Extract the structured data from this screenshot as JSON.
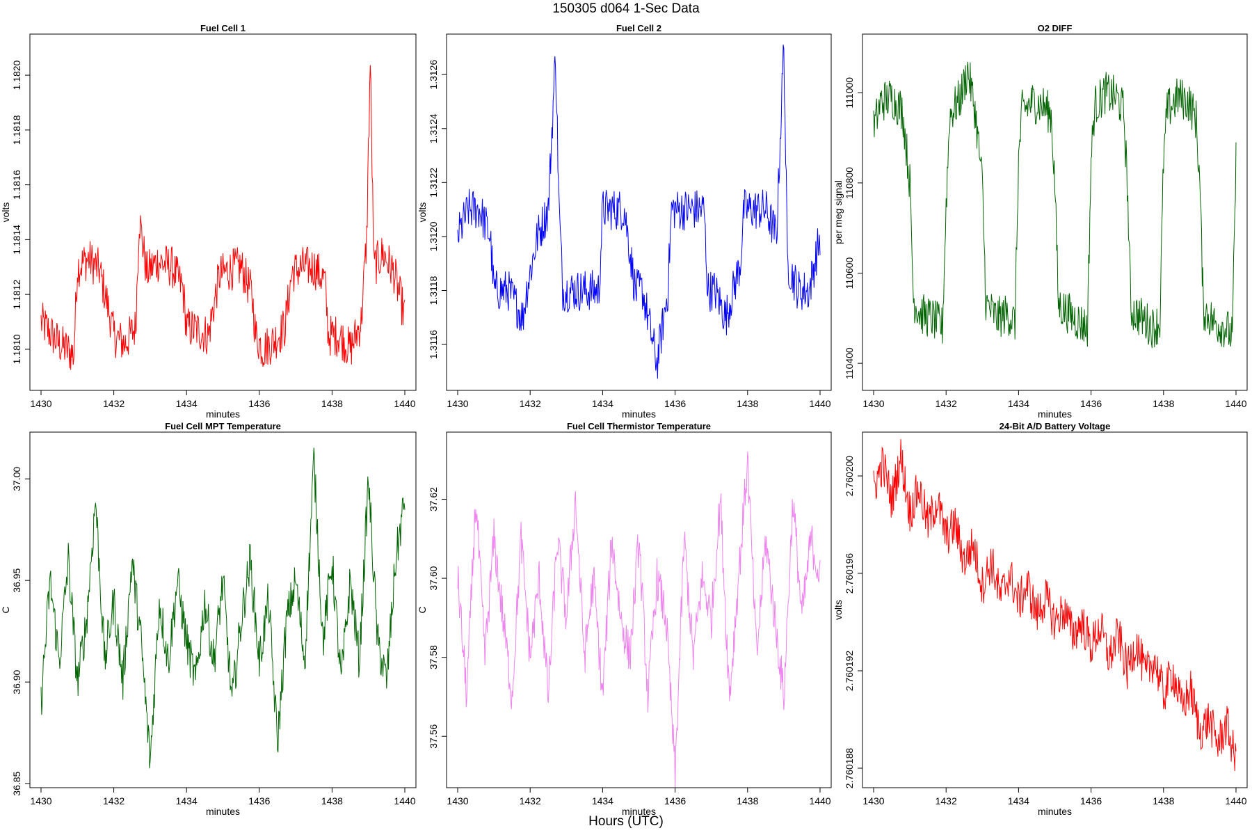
{
  "page": {
    "title": "150305   d064   1-Sec Data",
    "x_super_label": "Hours (UTC)"
  },
  "chart_data": [
    {
      "type": "line",
      "title": "Fuel Cell 1",
      "xlabel": "minutes",
      "ylabel": "volts",
      "color": "#ff0000",
      "xlim": [
        1430,
        1440
      ],
      "ylim": [
        1.18085,
        1.18215
      ],
      "xticks": [
        1430,
        1432,
        1434,
        1436,
        1438,
        1440
      ],
      "yticks": [
        1.181,
        1.1812,
        1.1814,
        1.1816,
        1.1818,
        1.182
      ],
      "ytick_labels": [
        "1.1810",
        "1.1812",
        "1.1814",
        "1.1816",
        "1.1818",
        "1.1820"
      ],
      "series": [
        {
          "name": "Fuel Cell 1",
          "x": [
            1430,
            1430.5,
            1430.9,
            1431,
            1431.3,
            1431.6,
            1431.9,
            1432,
            1432.3,
            1432.6,
            1432.7,
            1432.9,
            1433.2,
            1433.6,
            1433.9,
            1434,
            1434.3,
            1434.6,
            1434.9,
            1435.2,
            1435.5,
            1435.8,
            1435.9,
            1436.1,
            1436.4,
            1436.7,
            1436.9,
            1437.2,
            1437.5,
            1437.8,
            1437.9,
            1438.2,
            1438.5,
            1438.8,
            1438.95,
            1439.05,
            1439.15,
            1439.4,
            1439.7,
            1440
          ],
          "y": [
            1.1811,
            1.18102,
            1.18098,
            1.1813,
            1.18133,
            1.18129,
            1.18112,
            1.18105,
            1.18102,
            1.18108,
            1.18148,
            1.18128,
            1.18132,
            1.1813,
            1.18122,
            1.18108,
            1.18107,
            1.18105,
            1.18127,
            1.18129,
            1.1813,
            1.1812,
            1.18105,
            1.181,
            1.18103,
            1.18108,
            1.18128,
            1.1813,
            1.1813,
            1.18125,
            1.18105,
            1.18105,
            1.181,
            1.1811,
            1.1814,
            1.18205,
            1.1813,
            1.18135,
            1.18128,
            1.18112
          ]
        }
      ]
    },
    {
      "type": "line",
      "title": "Fuel Cell 2",
      "xlabel": "minutes",
      "ylabel": "volts",
      "color": "#0000ff",
      "xlim": [
        1430,
        1440
      ],
      "ylim": [
        1.31143,
        1.31275
      ],
      "xticks": [
        1430,
        1432,
        1434,
        1436,
        1438,
        1440
      ],
      "yticks": [
        1.3116,
        1.3118,
        1.312,
        1.3122,
        1.3124,
        1.3126
      ],
      "ytick_labels": [
        "1.3116",
        "1.3118",
        "1.3120",
        "1.3122",
        "1.3124",
        "1.3126"
      ],
      "series": [
        {
          "name": "Fuel Cell 2",
          "x": [
            1430,
            1430.3,
            1430.6,
            1430.9,
            1431,
            1431.4,
            1431.8,
            1431.9,
            1432.2,
            1432.5,
            1432.7,
            1432.8,
            1432.9,
            1433.2,
            1433.6,
            1433.9,
            1434,
            1434.3,
            1434.6,
            1434.9,
            1435.1,
            1435.5,
            1435.8,
            1435.9,
            1436.2,
            1436.5,
            1436.8,
            1436.9,
            1437.1,
            1437.4,
            1437.8,
            1437.9,
            1438.2,
            1438.5,
            1438.8,
            1439,
            1439.1,
            1439.4,
            1439.7,
            1440
          ],
          "y": [
            1.312,
            1.3121,
            1.3121,
            1.312,
            1.3118,
            1.3118,
            1.3117,
            1.3118,
            1.312,
            1.3121,
            1.31268,
            1.3121,
            1.3118,
            1.3118,
            1.3118,
            1.3118,
            1.3121,
            1.3121,
            1.3121,
            1.3118,
            1.3118,
            1.31153,
            1.3118,
            1.3121,
            1.3121,
            1.3121,
            1.3121,
            1.3118,
            1.3118,
            1.3117,
            1.3119,
            1.3121,
            1.3121,
            1.3121,
            1.312,
            1.31272,
            1.3119,
            1.3118,
            1.3118,
            1.312
          ]
        }
      ]
    },
    {
      "type": "line",
      "title": "O2 DIFF",
      "xlabel": "minutes",
      "ylabel": "per meg signal",
      "color": "#006400",
      "xlim": [
        1430,
        1440
      ],
      "ylim": [
        110340,
        111130
      ],
      "xticks": [
        1430,
        1432,
        1434,
        1436,
        1438,
        1440
      ],
      "yticks": [
        110400,
        110600,
        110800,
        111000
      ],
      "ytick_labels": [
        "110400",
        "110600",
        "110800",
        "111000"
      ],
      "series": [
        {
          "name": "O2 DIFF",
          "x": [
            1430,
            1430.2,
            1430.5,
            1430.8,
            1431.0,
            1431.1,
            1431.3,
            1431.6,
            1431.9,
            1432.0,
            1432.1,
            1432.4,
            1432.6,
            1432.8,
            1433.0,
            1433.1,
            1433.4,
            1433.7,
            1433.9,
            1434.0,
            1434.1,
            1434.4,
            1434.7,
            1434.9,
            1435.0,
            1435.1,
            1435.4,
            1435.7,
            1435.9,
            1436.0,
            1436.1,
            1436.4,
            1436.7,
            1436.9,
            1437.0,
            1437.1,
            1437.4,
            1437.7,
            1437.9,
            1438.0,
            1438.1,
            1438.4,
            1438.7,
            1438.9,
            1439.0,
            1439.1,
            1439.4,
            1439.7,
            1439.9,
            1440
          ],
          "y": [
            110920,
            110980,
            110990,
            110960,
            110800,
            110540,
            110510,
            110500,
            110480,
            110750,
            110950,
            110990,
            111050,
            110960,
            110800,
            110530,
            110500,
            110510,
            110490,
            110850,
            110960,
            110980,
            110970,
            110950,
            110800,
            110530,
            110510,
            110490,
            110480,
            110850,
            110970,
            111000,
            110990,
            110960,
            110800,
            110520,
            110500,
            110480,
            110490,
            110850,
            110960,
            110990,
            110980,
            110940,
            110800,
            110520,
            110490,
            110480,
            110460,
            110850
          ]
        }
      ]
    },
    {
      "type": "line",
      "title": "Fuel Cell MPT Temperature",
      "xlabel": "minutes",
      "ylabel": "C",
      "color": "#006400",
      "xlim": [
        1430,
        1440
      ],
      "ylim": [
        36.848,
        37.023
      ],
      "xticks": [
        1430,
        1432,
        1434,
        1436,
        1438,
        1440
      ],
      "yticks": [
        36.85,
        36.9,
        36.95,
        37.0
      ],
      "ytick_labels": [
        "36.85",
        "36.90",
        "36.95",
        "37.00"
      ],
      "series": [
        {
          "name": "Fuel Cell MPT Temperature",
          "x": [
            1430,
            1430.25,
            1430.5,
            1430.75,
            1431,
            1431.25,
            1431.5,
            1431.75,
            1432,
            1432.25,
            1432.5,
            1432.75,
            1433,
            1433.25,
            1433.5,
            1433.75,
            1434,
            1434.25,
            1434.5,
            1434.75,
            1435,
            1435.25,
            1435.5,
            1435.75,
            1436,
            1436.25,
            1436.5,
            1436.75,
            1437,
            1437.25,
            1437.5,
            1437.75,
            1438,
            1438.25,
            1438.5,
            1438.75,
            1439,
            1439.25,
            1439.5,
            1439.75,
            1440
          ],
          "y": [
            36.89,
            36.95,
            36.91,
            36.96,
            36.9,
            36.93,
            36.99,
            36.91,
            36.94,
            36.9,
            36.96,
            36.92,
            36.86,
            36.94,
            36.91,
            36.95,
            36.92,
            36.9,
            36.94,
            36.91,
            36.95,
            36.89,
            36.93,
            36.96,
            36.91,
            36.94,
            36.87,
            36.93,
            36.95,
            36.91,
            37.01,
            36.92,
            36.96,
            36.9,
            36.95,
            36.91,
            37.0,
            36.92,
            36.9,
            36.96,
            36.99
          ]
        }
      ]
    },
    {
      "type": "line",
      "title": "Fuel Cell Thermistor Temperature",
      "xlabel": "minutes",
      "ylabel": "C",
      "color": "#ee82ee",
      "xlim": [
        1430,
        1440
      ],
      "ylim": [
        37.547,
        37.637
      ],
      "xticks": [
        1430,
        1432,
        1434,
        1436,
        1438,
        1440
      ],
      "yticks": [
        37.56,
        37.58,
        37.6,
        37.62
      ],
      "ytick_labels": [
        "37.56",
        "37.58",
        "37.60",
        "37.62"
      ],
      "series": [
        {
          "name": "Fuel Cell Thermistor Temperature",
          "x": [
            1430,
            1430.25,
            1430.5,
            1430.75,
            1431,
            1431.25,
            1431.5,
            1431.75,
            1432,
            1432.25,
            1432.5,
            1432.75,
            1433,
            1433.25,
            1433.5,
            1433.75,
            1434,
            1434.25,
            1434.5,
            1434.75,
            1435,
            1435.25,
            1435.5,
            1435.75,
            1436,
            1436.25,
            1436.5,
            1436.75,
            1437,
            1437.25,
            1437.5,
            1437.75,
            1438,
            1438.25,
            1438.5,
            1438.75,
            1439,
            1439.25,
            1439.5,
            1439.75,
            1440
          ],
          "y": [
            37.6,
            37.57,
            37.62,
            37.58,
            37.61,
            37.59,
            37.57,
            37.61,
            37.58,
            37.6,
            37.57,
            37.61,
            37.59,
            37.62,
            37.58,
            37.6,
            37.57,
            37.61,
            37.59,
            37.58,
            37.61,
            37.57,
            37.6,
            37.59,
            37.55,
            37.61,
            37.58,
            37.6,
            37.59,
            37.62,
            37.57,
            37.6,
            37.63,
            37.58,
            37.61,
            37.59,
            37.57,
            37.62,
            37.59,
            37.61,
            37.6
          ]
        }
      ]
    },
    {
      "type": "line",
      "title": "24-Bit A/D Battery Voltage",
      "xlabel": "minutes",
      "ylabel": "volts",
      "color": "#ff0000",
      "xlim": [
        1430,
        1440
      ],
      "ylim": [
        2.7601872,
        2.7602018
      ],
      "xticks": [
        1430,
        1432,
        1434,
        1436,
        1438,
        1440
      ],
      "yticks": [
        2.760188,
        2.760192,
        2.760196,
        2.7602
      ],
      "ytick_labels": [
        "2.760188",
        "2.760192",
        "2.760196",
        "2.760200"
      ],
      "series": [
        {
          "name": "24-Bit A/D Battery Voltage",
          "x": [
            1430,
            1430.25,
            1430.5,
            1430.75,
            1431,
            1431.25,
            1431.5,
            1431.75,
            1432,
            1432.25,
            1432.5,
            1432.75,
            1433,
            1433.25,
            1433.5,
            1433.75,
            1434,
            1434.25,
            1434.5,
            1434.75,
            1435,
            1435.25,
            1435.5,
            1435.75,
            1436,
            1436.25,
            1436.5,
            1436.75,
            1437,
            1437.25,
            1437.5,
            1437.75,
            1438,
            1438.25,
            1438.5,
            1438.75,
            1439,
            1439.25,
            1439.5,
            1439.75,
            1440
          ],
          "y": [
            2.7601995,
            2.7602005,
            2.760199,
            2.7602008,
            2.7601985,
            2.7601995,
            2.760198,
            2.760199,
            2.7601975,
            2.760198,
            2.7601965,
            2.7601972,
            2.7601955,
            2.7601965,
            2.760195,
            2.760196,
            2.7601948,
            2.7601955,
            2.7601943,
            2.760195,
            2.760194,
            2.7601945,
            2.7601935,
            2.760194,
            2.760193,
            2.7601938,
            2.7601925,
            2.7601935,
            2.760192,
            2.7601932,
            2.7601918,
            2.7601925,
            2.760191,
            2.760192,
            2.7601905,
            2.7601912,
            2.7601895,
            2.76019,
            2.760189,
            2.7601898,
            2.7601882
          ]
        }
      ]
    }
  ]
}
